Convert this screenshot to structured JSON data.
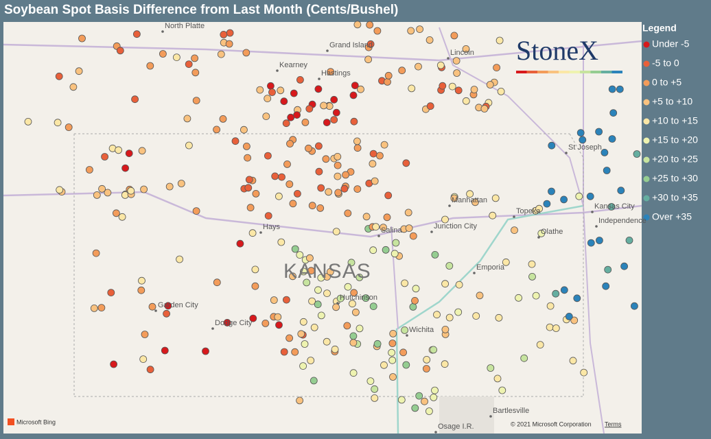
{
  "title": "Soybean Spot Basis Difference from Last Month (Cents/Bushel)",
  "legend": {
    "title": "Legend",
    "items": [
      {
        "label": "Under -5",
        "color": "#d7191c"
      },
      {
        "label": "-5 to 0",
        "color": "#e8603a"
      },
      {
        "label": "0 to +5",
        "color": "#f39c5a"
      },
      {
        "label": "+5 to +10",
        "color": "#f9c27f"
      },
      {
        "label": "+10 to +15",
        "color": "#fbe7a6"
      },
      {
        "label": "+15 to +20",
        "color": "#eef3b0"
      },
      {
        "label": "+20 to +25",
        "color": "#c7e49f"
      },
      {
        "label": "+25 to +30",
        "color": "#95cd91"
      },
      {
        "label": "+30 to +35",
        "color": "#65aea0"
      },
      {
        "label": "Over +35",
        "color": "#2b83ba"
      }
    ]
  },
  "map": {
    "state": "KANSAS",
    "cities": [
      "North Platte",
      "Grand Island",
      "Kearney",
      "Hastings",
      "Lincoln",
      "St Joseph",
      "Manhattan",
      "Topeka",
      "Kansas City",
      "Independence",
      "Hays",
      "Salina",
      "Junction City",
      "Olathe",
      "Emporia",
      "Garden City",
      "Dodge City",
      "Hutchinson",
      "Wichita",
      "Bartlesville",
      "Osage I.R."
    ]
  },
  "logo": "StoneX",
  "attribution": {
    "bing": "Microsoft Bing",
    "copyright": "© 2021 Microsoft Corporation",
    "terms": "Terms"
  }
}
